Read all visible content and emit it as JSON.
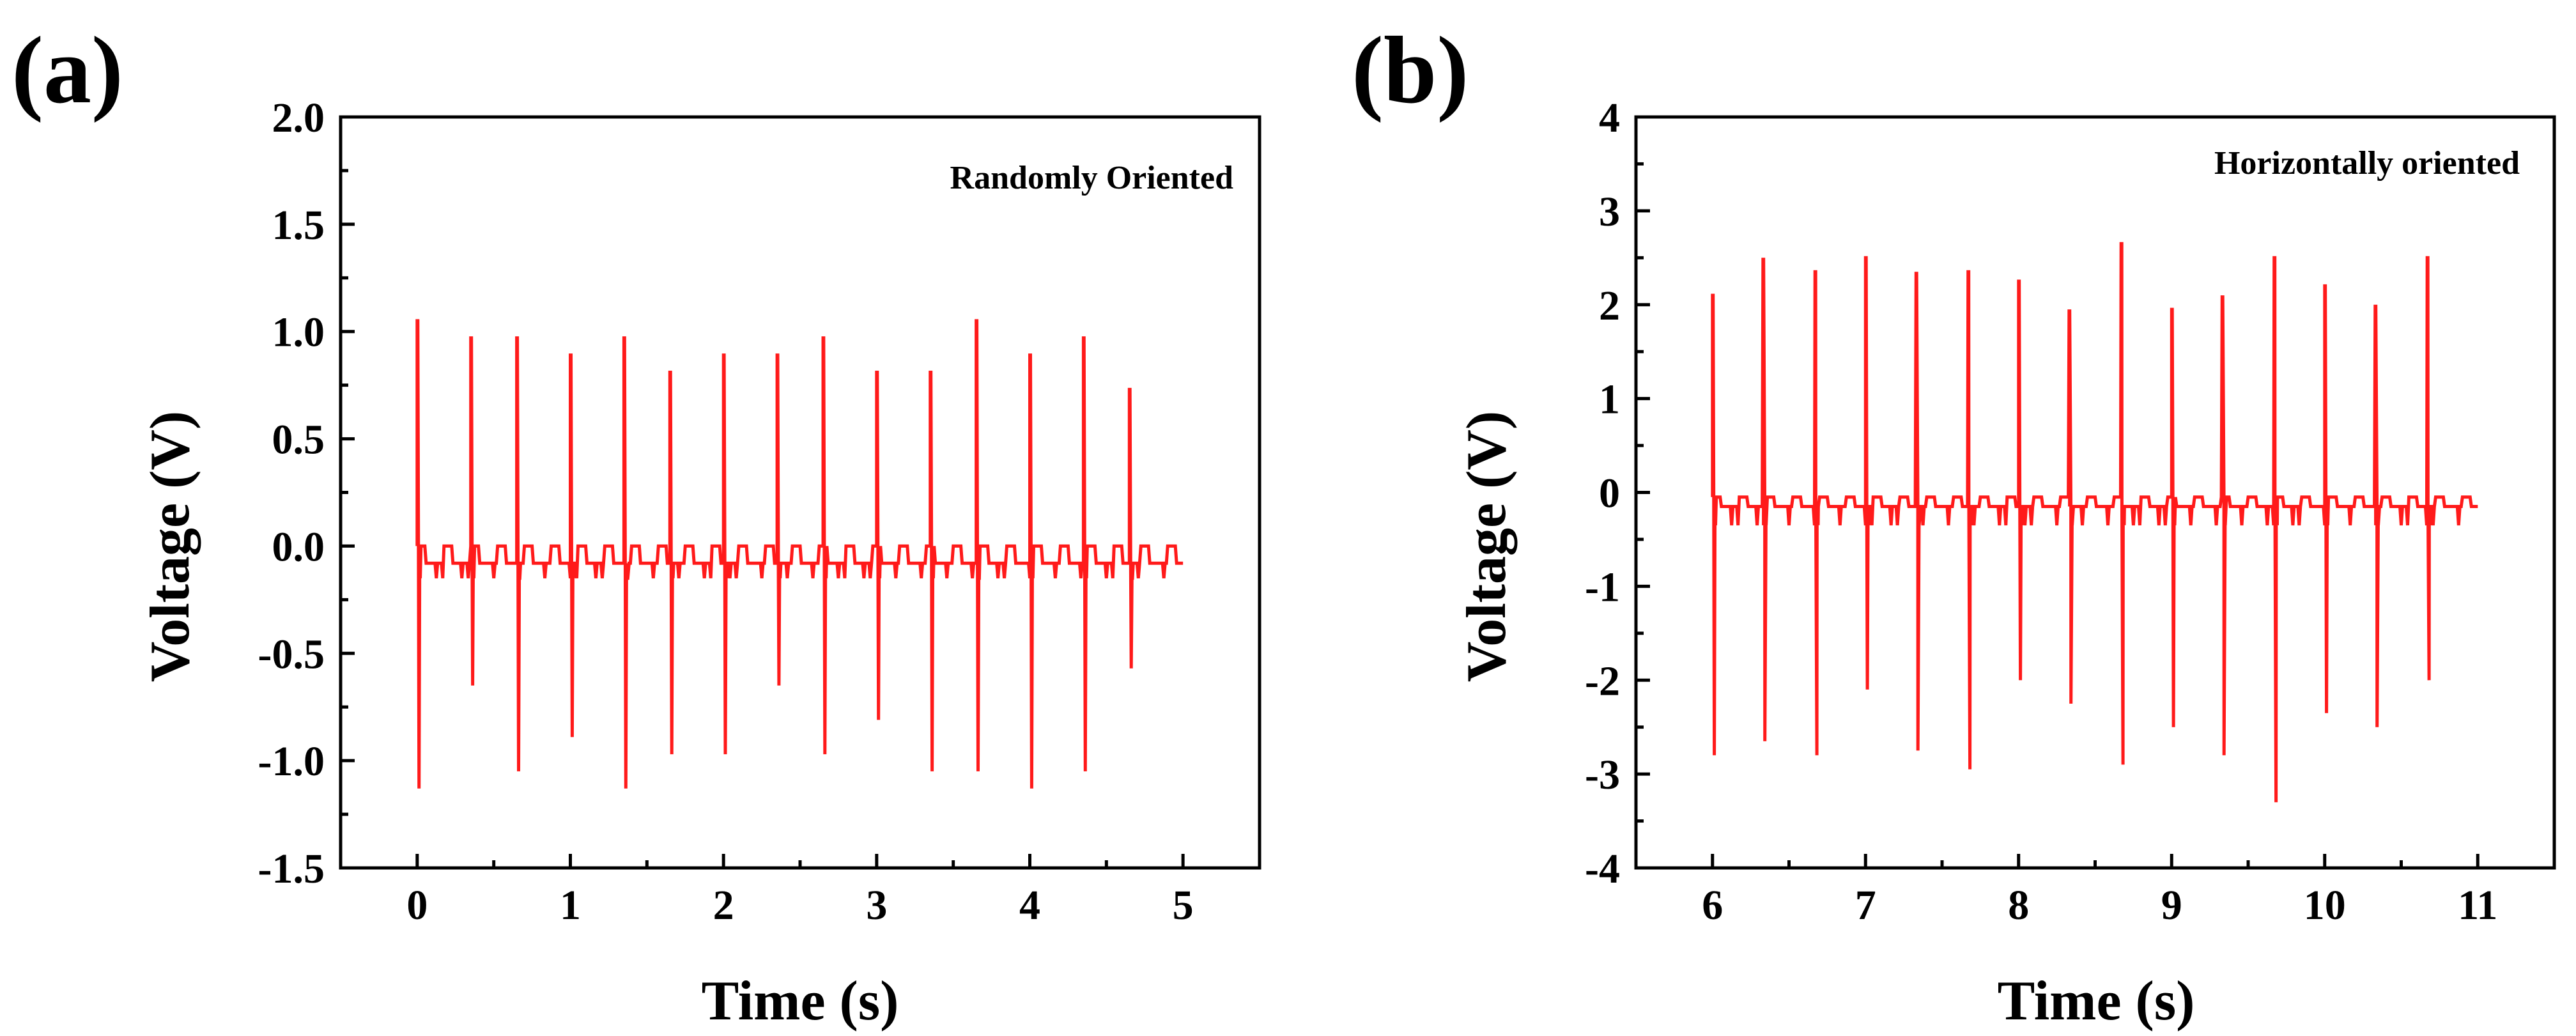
{
  "chart_data": [
    {
      "panel": "(a)",
      "type": "line",
      "annotation": "Randomly  Oriented",
      "xlabel": "Time (s)",
      "ylabel": "Voltage (V)",
      "xlim": [
        -0.5,
        5.5
      ],
      "ylim": [
        -1.5,
        2.0
      ],
      "xticks": [
        0,
        1,
        2,
        3,
        4,
        5
      ],
      "xtick_labels": [
        "0",
        "1",
        "2",
        "3",
        "4",
        "5"
      ],
      "yticks": [
        -1.5,
        -1.0,
        -0.5,
        0.0,
        0.5,
        1.0,
        1.5,
        2.0
      ],
      "ytick_labels": [
        "-1.5",
        "-1.0",
        "-0.5",
        "0.0",
        "0.5",
        "1.0",
        "1.5",
        "2.0"
      ],
      "series": [
        {
          "name": "Voltage",
          "color": "#ff1a1a",
          "x_start": 0.0,
          "x_end": 5.0,
          "baseline_high": 0.0,
          "baseline_low": -0.08,
          "baseline_dip": -0.15,
          "pulse_times": [
            0.0,
            0.35,
            0.65,
            1.0,
            1.35,
            1.65,
            2.0,
            2.35,
            2.65,
            3.0,
            3.35,
            3.65,
            4.0,
            4.35,
            4.65
          ],
          "pulse_peaks": [
            1.05,
            0.97,
            0.97,
            0.89,
            0.97,
            0.81,
            0.89,
            0.89,
            0.97,
            0.81,
            0.81,
            1.05,
            0.89,
            0.97,
            0.73
          ],
          "pulse_troughs": [
            -1.13,
            -0.65,
            -1.05,
            -0.89,
            -1.13,
            -0.97,
            -0.97,
            -0.65,
            -0.97,
            -0.81,
            -1.05,
            -1.05,
            -1.13,
            -1.05,
            -0.57
          ]
        }
      ]
    },
    {
      "panel": "(b)",
      "type": "line",
      "annotation": "Horizontally oriented",
      "xlabel": "Time (s)",
      "ylabel": "Voltage (V)",
      "xlim": [
        5.5,
        11.5
      ],
      "ylim": [
        -4,
        4
      ],
      "xticks": [
        6,
        7,
        8,
        9,
        10,
        11
      ],
      "xtick_labels": [
        "6",
        "7",
        "8",
        "9",
        "10",
        "11"
      ],
      "yticks": [
        -4,
        -3,
        -2,
        -1,
        0,
        1,
        2,
        3,
        4
      ],
      "ytick_labels": [
        "-4",
        "-3",
        "-2",
        "-1",
        "0",
        "1",
        "2",
        "3",
        "4"
      ],
      "series": [
        {
          "name": "Voltage",
          "color": "#ff1a1a",
          "x_start": 6.0,
          "x_end": 11.0,
          "baseline_high": -0.05,
          "baseline_low": -0.15,
          "baseline_dip": -0.35,
          "pulse_times": [
            6.0,
            6.33,
            6.67,
            7.0,
            7.33,
            7.67,
            8.0,
            8.33,
            8.67,
            9.0,
            9.33,
            9.67,
            10.0,
            10.33,
            10.67
          ],
          "pulse_peaks": [
            2.1,
            2.5,
            2.35,
            2.5,
            2.35,
            2.35,
            2.25,
            1.95,
            2.65,
            1.95,
            2.1,
            2.5,
            2.2,
            2.0,
            2.5
          ],
          "pulse_troughs": [
            -2.8,
            -2.65,
            -2.8,
            -2.1,
            -2.75,
            -2.95,
            -2.0,
            -2.25,
            -2.9,
            -2.5,
            -2.8,
            -3.3,
            -2.35,
            -2.5,
            -2.0
          ]
        }
      ]
    }
  ]
}
